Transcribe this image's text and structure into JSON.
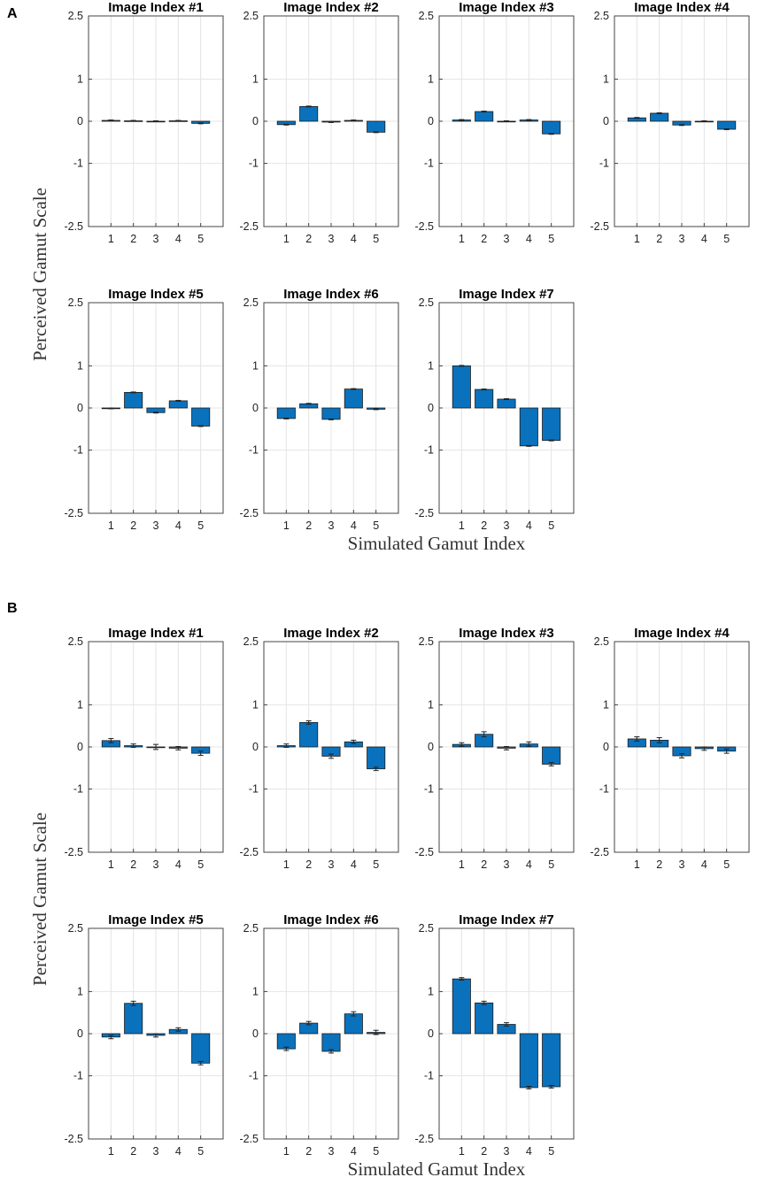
{
  "figure": {
    "panels": [
      {
        "letter": "A",
        "ylabel": "Perceived Gamut Scale",
        "xlabel": "Simulated Gamut Index"
      },
      {
        "letter": "B",
        "ylabel": "Perceived Gamut Scale",
        "xlabel": "Simulated Gamut Index"
      }
    ]
  },
  "chart_data": [
    {
      "type": "bar",
      "panel": "A",
      "categories": [
        "1",
        "2",
        "3",
        "4",
        "5"
      ],
      "ylim": [
        -2.5,
        2.5
      ],
      "yticks": [
        -2.5,
        -1,
        0,
        1,
        2.5
      ],
      "ytick_labels": [
        "-2.5",
        "-1",
        "0",
        "1",
        "2.5"
      ],
      "grid": true,
      "subplots": [
        {
          "title": "Image Index #1",
          "values": [
            0.02,
            0.01,
            0.0,
            0.01,
            -0.05
          ],
          "errors": [
            0.01,
            0.01,
            0.01,
            0.01,
            0.01
          ]
        },
        {
          "title": "Image Index #2",
          "values": [
            -0.08,
            0.35,
            -0.02,
            0.02,
            -0.26
          ],
          "errors": [
            0.01,
            0.01,
            0.01,
            0.01,
            0.01
          ]
        },
        {
          "title": "Image Index #3",
          "values": [
            0.03,
            0.23,
            0.0,
            0.03,
            -0.3
          ],
          "errors": [
            0.01,
            0.01,
            0.01,
            0.01,
            0.01
          ]
        },
        {
          "title": "Image Index #4",
          "values": [
            0.08,
            0.19,
            -0.09,
            0.0,
            -0.19
          ],
          "errors": [
            0.01,
            0.01,
            0.01,
            0.01,
            0.01
          ]
        },
        {
          "title": "Image Index #5",
          "values": [
            -0.01,
            0.37,
            -0.11,
            0.17,
            -0.43
          ],
          "errors": [
            0.01,
            0.01,
            0.01,
            0.01,
            0.01
          ]
        },
        {
          "title": "Image Index #6",
          "values": [
            -0.25,
            0.1,
            -0.27,
            0.45,
            -0.03
          ],
          "errors": [
            0.01,
            0.01,
            0.01,
            0.01,
            0.01
          ]
        },
        {
          "title": "Image Index #7",
          "values": [
            1.0,
            0.44,
            0.21,
            -0.9,
            -0.77
          ],
          "errors": [
            0.01,
            0.01,
            0.01,
            0.01,
            0.01
          ]
        }
      ]
    },
    {
      "type": "bar",
      "panel": "B",
      "categories": [
        "1",
        "2",
        "3",
        "4",
        "5"
      ],
      "ylim": [
        -2.5,
        2.5
      ],
      "yticks": [
        -2.5,
        -1,
        0,
        1,
        2.5
      ],
      "ytick_labels": [
        "-2.5",
        "-1",
        "0",
        "1",
        "2.5"
      ],
      "grid": true,
      "subplots": [
        {
          "title": "Image Index #1",
          "values": [
            0.15,
            0.03,
            0.0,
            -0.03,
            -0.15
          ],
          "errors": [
            0.05,
            0.04,
            0.06,
            0.04,
            0.05
          ]
        },
        {
          "title": "Image Index #2",
          "values": [
            0.03,
            0.58,
            -0.22,
            0.12,
            -0.52
          ],
          "errors": [
            0.04,
            0.04,
            0.05,
            0.04,
            0.04
          ]
        },
        {
          "title": "Image Index #3",
          "values": [
            0.06,
            0.3,
            -0.03,
            0.07,
            -0.41
          ],
          "errors": [
            0.04,
            0.06,
            0.04,
            0.05,
            0.04
          ]
        },
        {
          "title": "Image Index #4",
          "values": [
            0.19,
            0.16,
            -0.21,
            -0.04,
            -0.1
          ],
          "errors": [
            0.05,
            0.06,
            0.05,
            0.04,
            0.05
          ]
        },
        {
          "title": "Image Index #5",
          "values": [
            -0.08,
            0.72,
            -0.04,
            0.1,
            -0.7
          ],
          "errors": [
            0.04,
            0.05,
            0.04,
            0.04,
            0.04
          ]
        },
        {
          "title": "Image Index #6",
          "values": [
            -0.36,
            0.25,
            -0.42,
            0.47,
            0.03
          ],
          "errors": [
            0.04,
            0.04,
            0.04,
            0.05,
            0.05
          ]
        },
        {
          "title": "Image Index #7",
          "values": [
            1.3,
            0.73,
            0.22,
            -1.28,
            -1.26
          ],
          "errors": [
            0.03,
            0.04,
            0.04,
            0.03,
            0.03
          ]
        }
      ]
    }
  ]
}
